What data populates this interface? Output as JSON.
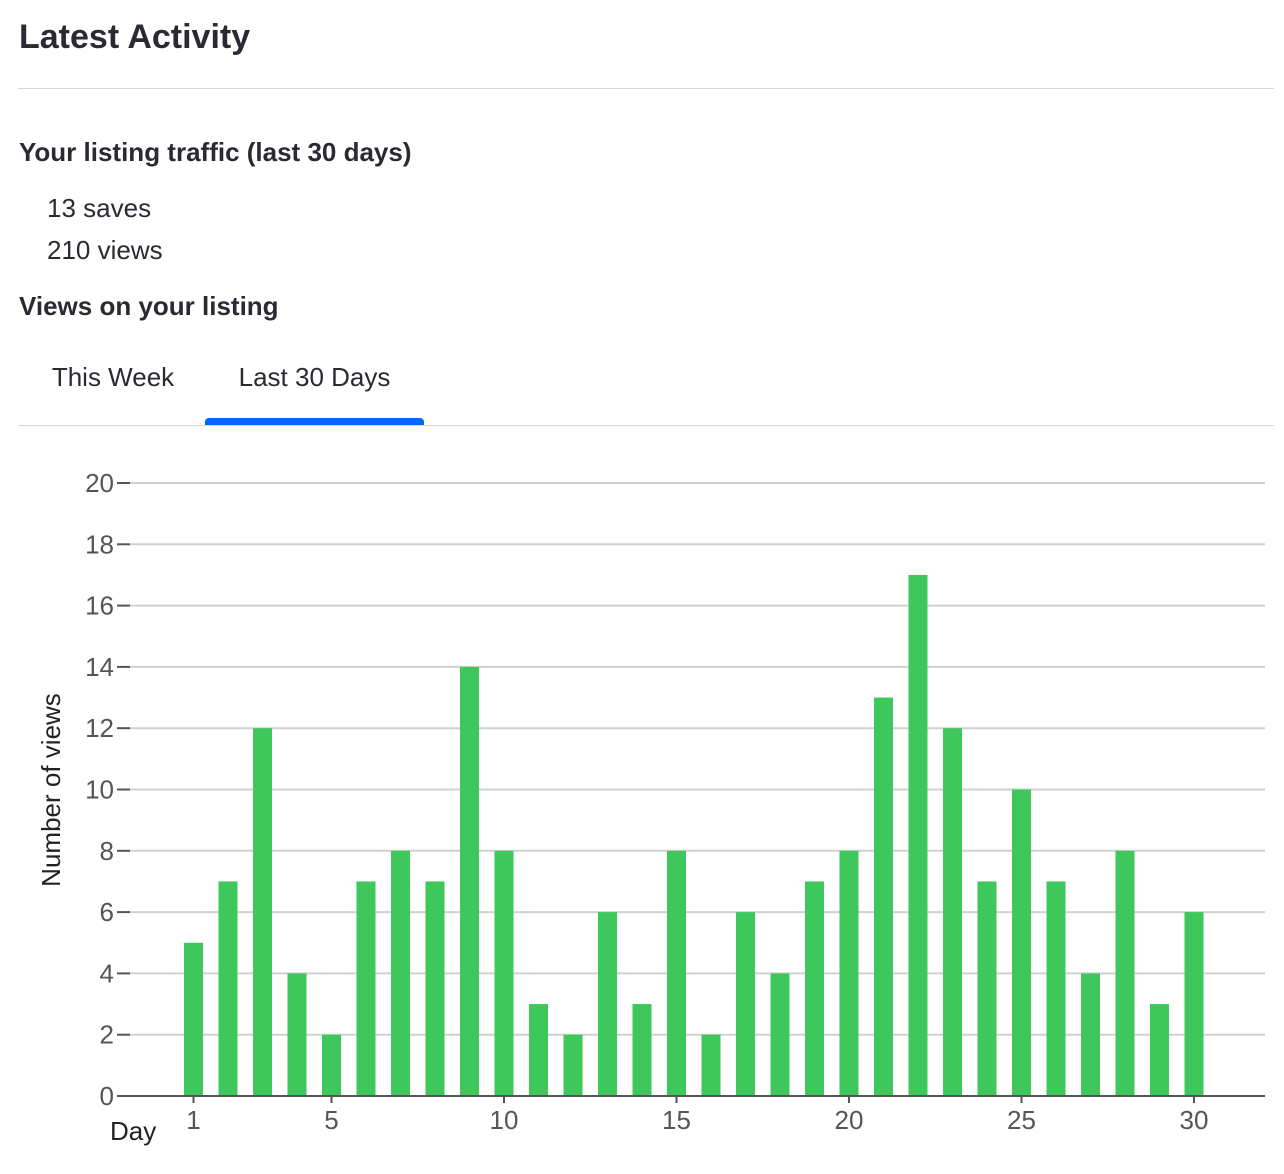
{
  "header": {
    "title": "Latest Activity"
  },
  "traffic": {
    "heading": "Your listing traffic (last 30 days)",
    "saves": "13 saves",
    "views": "210 views"
  },
  "views_section": {
    "heading": "Views on your listing",
    "tabs": [
      {
        "label": "This Week",
        "selected": false
      },
      {
        "label": "Last 30 Days",
        "selected": true
      }
    ]
  },
  "colors": {
    "accent": "#006aff",
    "bar": "#3ec75a",
    "grid": "#d0d0d0",
    "axis": "#555555"
  },
  "chart_data": {
    "type": "bar",
    "x": [
      1,
      2,
      3,
      4,
      5,
      6,
      7,
      8,
      9,
      10,
      11,
      12,
      13,
      14,
      15,
      16,
      17,
      18,
      19,
      20,
      21,
      22,
      23,
      24,
      25,
      26,
      27,
      28,
      29,
      30
    ],
    "values": [
      5,
      7,
      12,
      4,
      2,
      7,
      8,
      7,
      14,
      8,
      3,
      2,
      6,
      3,
      8,
      2,
      6,
      4,
      7,
      8,
      13,
      17,
      12,
      7,
      10,
      7,
      4,
      8,
      3,
      6
    ],
    "xlabel": "Day",
    "ylabel": "Number of views",
    "ylim": [
      0,
      20
    ],
    "yticks": [
      0,
      2,
      4,
      6,
      8,
      10,
      12,
      14,
      16,
      18,
      20
    ],
    "xticks": [
      1,
      5,
      10,
      15,
      20,
      25,
      30
    ],
    "grid": true
  }
}
